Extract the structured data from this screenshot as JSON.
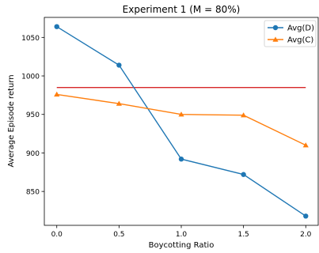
{
  "chart_data": {
    "type": "line",
    "title": "Experiment 1 (M = 80%)",
    "xlabel": "Boycotting Ratio",
    "ylabel": "Average Episode return",
    "x": [
      0.0,
      0.5,
      1.0,
      1.5,
      2.0
    ],
    "xlim": [
      -0.1,
      2.1
    ],
    "ylim": [
      806,
      1076
    ],
    "xticks": [
      "0.0",
      "0.5",
      "1.0",
      "1.5",
      "2.0"
    ],
    "yticks": [
      "850",
      "900",
      "950",
      "1000",
      "1050"
    ],
    "grid": false,
    "legend_position": "top-right",
    "series": [
      {
        "name": "Avg(D)",
        "values": [
          1064,
          1014,
          892,
          872,
          818
        ],
        "color": "#1f77b4",
        "marker": "circle"
      },
      {
        "name": "Avg(C)",
        "values": [
          976,
          964,
          950,
          949,
          910
        ],
        "color": "#ff7f0e",
        "marker": "triangle"
      }
    ],
    "reference_line": {
      "y": 985,
      "color": "#d62728",
      "xrange": [
        0.0,
        2.0
      ]
    }
  }
}
